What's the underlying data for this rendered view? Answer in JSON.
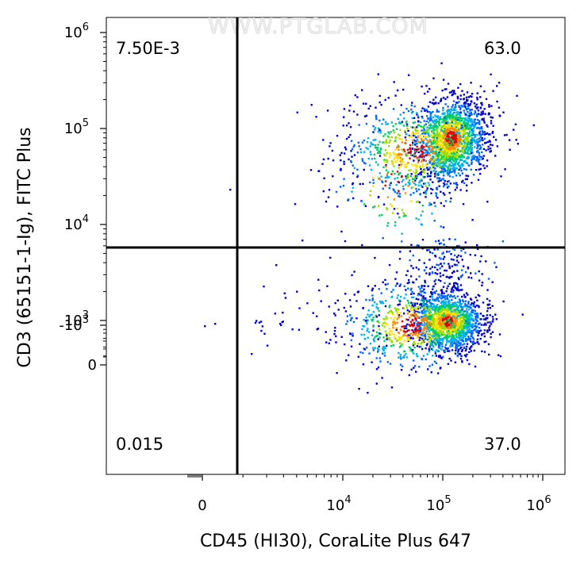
{
  "watermark": "WWW.PTGLAB.COM",
  "chart_data": {
    "type": "scatter",
    "subtype": "flow-cytometry-density-dot-plot",
    "xlabel": "CD45 (HI30), CoraLite Plus 647",
    "ylabel": "CD3 (65151-1-Ig), FITC Plus",
    "x_scale": "biexponential",
    "y_scale": "biexponential",
    "x_ticks": [
      {
        "label": "0",
        "sup": ""
      },
      {
        "label": "10",
        "sup": "4"
      },
      {
        "label": "10",
        "sup": "5"
      },
      {
        "label": "10",
        "sup": "6"
      }
    ],
    "y_ticks": [
      {
        "label": "-10",
        "sup": "3"
      },
      {
        "label": "0",
        "sup": ""
      },
      {
        "label": "10",
        "sup": "3"
      },
      {
        "label": "10",
        "sup": "4"
      },
      {
        "label": "10",
        "sup": "5"
      },
      {
        "label": "10",
        "sup": "6"
      }
    ],
    "quadrants": {
      "upper_left": "7.50E-3",
      "upper_right": "63.0",
      "lower_left": "0.015",
      "lower_right": "37.0"
    },
    "populations": [
      {
        "name_hint": "CD45+CD3+",
        "center": {
          "x": 120000,
          "y": 80000
        }
      },
      {
        "name_hint": "CD45+CD3-",
        "center": {
          "x": 110000,
          "y": 1000
        }
      }
    ],
    "density_colors": [
      "#0000cc",
      "#0066ff",
      "#00b0f0",
      "#00cc66",
      "#99dd00",
      "#ffe000",
      "#ff8800",
      "#e00000"
    ],
    "grid": false
  }
}
